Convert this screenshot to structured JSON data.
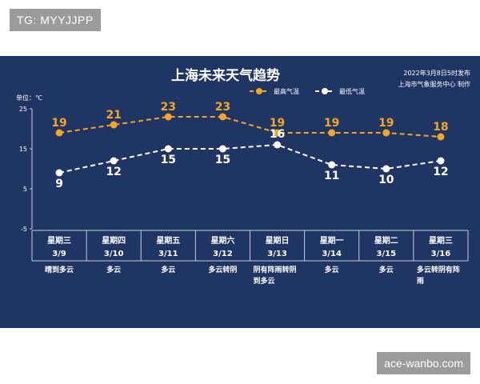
{
  "watermarks": {
    "top": "TG: MYYJJPP",
    "bottom": "ace-wanbo.com"
  },
  "colors": {
    "panel_bg": "#1f3564",
    "high": "#f5a623",
    "low": "#ffffff",
    "text": "#ffffff"
  },
  "chart_data": {
    "type": "line",
    "title": "上海未来天气趋势",
    "publish_date": "2022年3月8日5时发布",
    "publisher": "上海市气象服务中心 制作",
    "unit_label": "单位：℃",
    "ylim": [
      -5,
      25
    ],
    "yticks": [
      "25",
      "15",
      "5",
      "-5"
    ],
    "ytick_values": [
      25,
      15,
      5,
      -5
    ],
    "categories": [
      {
        "weekday": "星期三",
        "date": "3/9",
        "weather": [
          "晴到多云"
        ]
      },
      {
        "weekday": "星期四",
        "date": "3/10",
        "weather": [
          "多云"
        ]
      },
      {
        "weekday": "星期五",
        "date": "3/11",
        "weather": [
          "多云"
        ]
      },
      {
        "weekday": "星期六",
        "date": "3/12",
        "weather": [
          "多云转阴"
        ]
      },
      {
        "weekday": "星期日",
        "date": "3/13",
        "weather": [
          "阴有阵雨转阴",
          "到多云"
        ]
      },
      {
        "weekday": "星期一",
        "date": "3/14",
        "weather": [
          "多云"
        ]
      },
      {
        "weekday": "星期二",
        "date": "3/15",
        "weather": [
          "多云"
        ]
      },
      {
        "weekday": "星期三",
        "date": "3/16",
        "weather": [
          "多云转阴有阵",
          "雨"
        ]
      }
    ],
    "series": [
      {
        "name": "最高气温",
        "values": [
          19,
          21,
          23,
          23,
          19,
          19,
          19,
          18
        ]
      },
      {
        "name": "最低气温",
        "values": [
          9,
          12,
          15,
          15,
          16,
          11,
          10,
          12
        ]
      }
    ],
    "legend": "top-right",
    "grid": false
  }
}
